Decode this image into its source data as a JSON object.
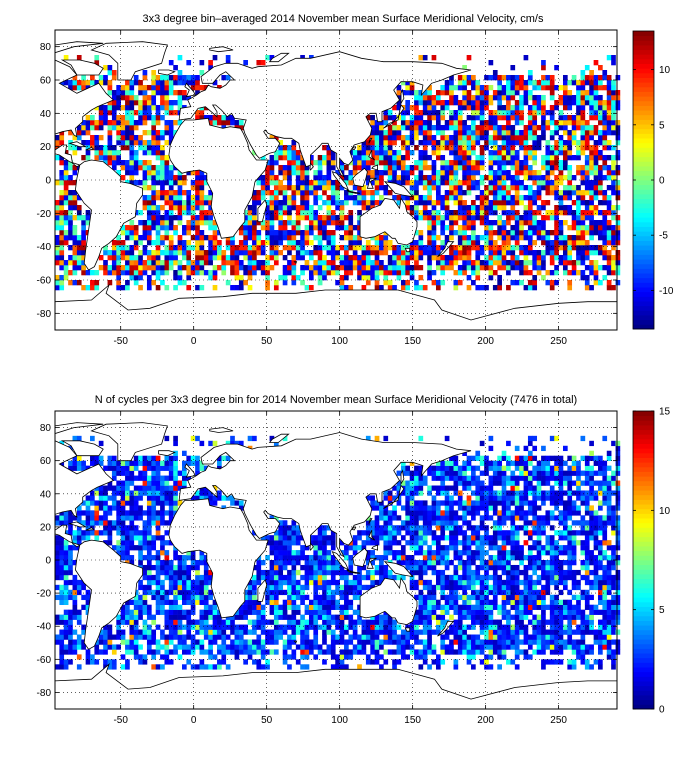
{
  "chart_data": [
    {
      "type": "heatmap",
      "title": "3x3 degree bin–averaged 2014 November mean Surface Meridional Velocity, cm/s",
      "xlim": [
        -95,
        290
      ],
      "ylim": [
        -90,
        90
      ],
      "x_ticks": [
        -50,
        0,
        50,
        100,
        150,
        200,
        250
      ],
      "y_ticks": [
        -80,
        -60,
        -40,
        -20,
        0,
        20,
        40,
        60,
        80
      ],
      "grid": true,
      "bin_size_deg": 3,
      "colorbar": {
        "colormap": "jet",
        "clim": [
          -13.5,
          13.5
        ],
        "ticks": [
          -10,
          -5,
          0,
          5,
          10
        ],
        "position": "right"
      }
    },
    {
      "type": "heatmap",
      "title": "N of cycles per 3x3 degree bin for 2014 November mean Surface Meridional Velocity (7476 in total)",
      "xlim": [
        -95,
        290
      ],
      "ylim": [
        -90,
        90
      ],
      "x_ticks": [
        -50,
        0,
        50,
        100,
        150,
        200,
        250
      ],
      "y_ticks": [
        -80,
        -60,
        -40,
        -20,
        0,
        20,
        40,
        60,
        80
      ],
      "grid": true,
      "bin_size_deg": 3,
      "total_cycles": 7476,
      "colorbar": {
        "colormap": "jet",
        "clim": [
          0,
          15
        ],
        "ticks": [
          0,
          5,
          10,
          15
        ],
        "position": "right"
      }
    }
  ]
}
